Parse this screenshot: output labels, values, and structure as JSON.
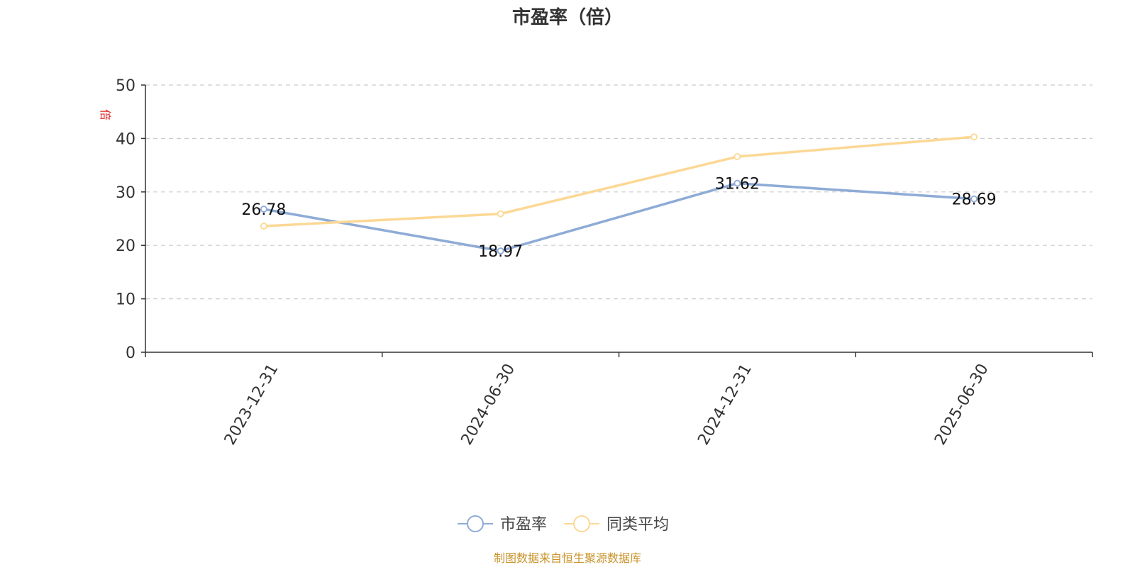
{
  "colors": {
    "series_1": "#8eabd6",
    "series_2": "#fcd895",
    "axis": "#333333",
    "grid": "#cccccc",
    "unit": "#e02020",
    "source": "#c8932a",
    "title": "#333333"
  },
  "chart_data": {
    "type": "line",
    "title": "市盈率（倍）",
    "unit_label": "倍",
    "categories": [
      "2023-12-31",
      "2024-06-30",
      "2024-12-31",
      "2025-06-30"
    ],
    "series": [
      {
        "name": "市盈率",
        "values": [
          26.78,
          18.97,
          31.62,
          28.69
        ],
        "show_labels": true
      },
      {
        "name": "同类平均",
        "values": [
          23.6,
          25.9,
          36.6,
          40.3
        ],
        "show_labels": false
      }
    ],
    "ylim": [
      0,
      50
    ],
    "yticks": [
      0,
      10,
      20,
      30,
      40,
      50
    ],
    "grid": true,
    "legend_position": "bottom-center"
  },
  "footer": {
    "source": "制图数据来自恒生聚源数据库"
  }
}
